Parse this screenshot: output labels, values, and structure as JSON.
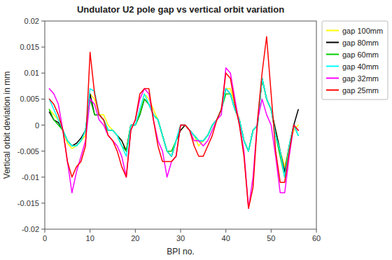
{
  "chart_data": {
    "type": "line",
    "title": "Undulator U2 pole gap vs vertical orbit variation",
    "x_label": "BPI no.",
    "y_label": "Vertical orbit deviation in mm",
    "xlim": [
      0,
      60
    ],
    "ylim": [
      -0.02,
      0.02
    ],
    "xticks": [
      0,
      10,
      20,
      30,
      40,
      50,
      60
    ],
    "yticks": [
      -0.02,
      -0.015,
      -0.01,
      -0.005,
      0,
      0.005,
      0.01,
      0.015,
      0.02
    ],
    "grid": false,
    "legend": "upper right",
    "x": [
      1,
      2,
      3,
      4,
      5,
      6,
      7,
      8,
      9,
      10,
      11,
      12,
      13,
      14,
      15,
      16,
      17,
      18,
      19,
      20,
      21,
      22,
      23,
      24,
      25,
      26,
      27,
      28,
      29,
      30,
      31,
      32,
      33,
      34,
      35,
      36,
      37,
      38,
      39,
      40,
      41,
      42,
      43,
      44,
      45,
      46,
      47,
      48,
      49,
      50,
      51,
      52,
      53,
      54,
      55,
      56
    ],
    "series": [
      {
        "name": "gap 100mm",
        "color": "#FFFF00",
        "values": [
          0.003,
          0.002,
          0.001,
          -0.001,
          -0.0035,
          -0.0045,
          -0.004,
          -0.003,
          -0.002,
          0.006,
          0.005,
          0.002,
          0.002,
          0.0,
          -0.001,
          -0.002,
          -0.003,
          -0.005,
          0.0,
          0.0,
          0.0025,
          0.006,
          0.005,
          0.003,
          0.001,
          -0.002,
          -0.005,
          -0.006,
          -0.003,
          -0.001,
          0.0,
          -0.001,
          -0.002,
          -0.004,
          -0.003,
          -0.002,
          0.0,
          0.001,
          0.003,
          0.007,
          0.007,
          0.004,
          0.001,
          -0.003,
          -0.005,
          -0.001,
          0.0,
          0.009,
          0.005,
          0.003,
          -0.001,
          -0.005,
          -0.008,
          -0.004,
          -0.001,
          0.0
        ]
      },
      {
        "name": "gap 80mm",
        "color": "#000000",
        "values": [
          0.0025,
          0.001,
          0.0005,
          -0.001,
          -0.003,
          -0.004,
          -0.0035,
          -0.0025,
          -0.001,
          0.006,
          0.002,
          0.002,
          0.001,
          -0.001,
          -0.001,
          -0.002,
          -0.003,
          -0.005,
          0.0,
          0.0,
          0.002,
          0.005,
          0.004,
          0.002,
          0.001,
          -0.002,
          -0.005,
          -0.006,
          -0.003,
          -0.001,
          0.0,
          -0.001,
          -0.002,
          -0.003,
          -0.003,
          -0.002,
          0.0,
          0.001,
          0.003,
          0.007,
          0.006,
          0.003,
          0.001,
          -0.003,
          -0.005,
          -0.001,
          0.0,
          0.009,
          0.005,
          0.003,
          -0.001,
          -0.005,
          -0.009,
          -0.004,
          0.0,
          0.003
        ]
      },
      {
        "name": "gap 60mm",
        "color": "#00CC00",
        "values": [
          0.003,
          0.001,
          0.0,
          -0.001,
          -0.003,
          -0.004,
          -0.004,
          -0.003,
          -0.001,
          0.005,
          0.002,
          0.002,
          0.001,
          -0.001,
          -0.001,
          -0.002,
          -0.004,
          -0.005,
          0.0,
          0.0,
          0.002,
          0.005,
          0.004,
          0.002,
          0.001,
          -0.002,
          -0.005,
          -0.005,
          -0.003,
          0.0,
          0.0,
          -0.001,
          -0.002,
          -0.003,
          -0.003,
          -0.002,
          0.0,
          0.001,
          0.003,
          0.006,
          0.006,
          0.003,
          0.001,
          -0.003,
          -0.005,
          -0.001,
          0.0,
          0.009,
          0.005,
          0.003,
          -0.002,
          -0.006,
          -0.01,
          -0.004,
          0.0,
          -0.002
        ]
      },
      {
        "name": "gap 40mm",
        "color": "#00FFFF",
        "values": [
          0.005,
          0.003,
          0.001,
          -0.001,
          -0.003,
          -0.004,
          -0.004,
          -0.003,
          -0.001,
          0.007,
          0.0065,
          0.002,
          0.001,
          -0.001,
          -0.001,
          -0.002,
          -0.004,
          -0.006,
          0.0,
          0.0,
          0.003,
          0.006,
          0.004,
          0.002,
          0.001,
          -0.002,
          -0.005,
          -0.006,
          -0.003,
          0.0,
          0.0,
          -0.001,
          -0.002,
          -0.003,
          -0.003,
          -0.002,
          0.0,
          0.001,
          0.003,
          0.007,
          0.006,
          0.003,
          0.001,
          -0.003,
          -0.005,
          -0.001,
          0.0,
          0.009,
          0.005,
          0.003,
          -0.002,
          -0.005,
          -0.01,
          -0.004,
          0.0,
          -0.002
        ]
      },
      {
        "name": "gap 32mm",
        "color": "#FF00FF",
        "values": [
          0.007,
          0.006,
          0.004,
          -0.001,
          -0.007,
          -0.013,
          -0.009,
          -0.006,
          -0.003,
          0.005,
          0.004,
          0.001,
          0.0,
          -0.002,
          -0.003,
          -0.004,
          -0.006,
          -0.01,
          -0.001,
          0.001,
          0.005,
          0.007,
          0.006,
          0.001,
          -0.003,
          -0.005,
          -0.01,
          -0.007,
          -0.006,
          0.0,
          0.0,
          -0.001,
          -0.003,
          -0.003,
          -0.004,
          -0.003,
          -0.001,
          0.001,
          0.002,
          0.011,
          0.01,
          0.005,
          0.0,
          -0.005,
          -0.016,
          -0.01,
          0.001,
          0.005,
          0.002,
          0.0,
          -0.006,
          -0.013,
          -0.013,
          -0.006,
          0.0,
          -0.001
        ]
      },
      {
        "name": "gap 25mm",
        "color": "#FF0000",
        "values": [
          0.005,
          0.004,
          0.002,
          -0.001,
          -0.007,
          -0.01,
          -0.008,
          -0.007,
          -0.004,
          0.014,
          0.006,
          0.002,
          0.001,
          -0.002,
          -0.003,
          -0.005,
          -0.008,
          -0.01,
          -0.001,
          0.001,
          0.006,
          0.007,
          0.007,
          0.001,
          -0.004,
          -0.007,
          -0.007,
          -0.007,
          -0.006,
          0.0,
          0.0,
          -0.001,
          -0.004,
          -0.006,
          -0.006,
          -0.004,
          -0.002,
          0.001,
          0.003,
          0.01,
          0.009,
          0.004,
          0.0,
          -0.006,
          -0.016,
          -0.012,
          0.001,
          0.01,
          0.017,
          0.006,
          -0.005,
          -0.011,
          -0.011,
          -0.005,
          0.0,
          -0.001
        ]
      }
    ]
  }
}
